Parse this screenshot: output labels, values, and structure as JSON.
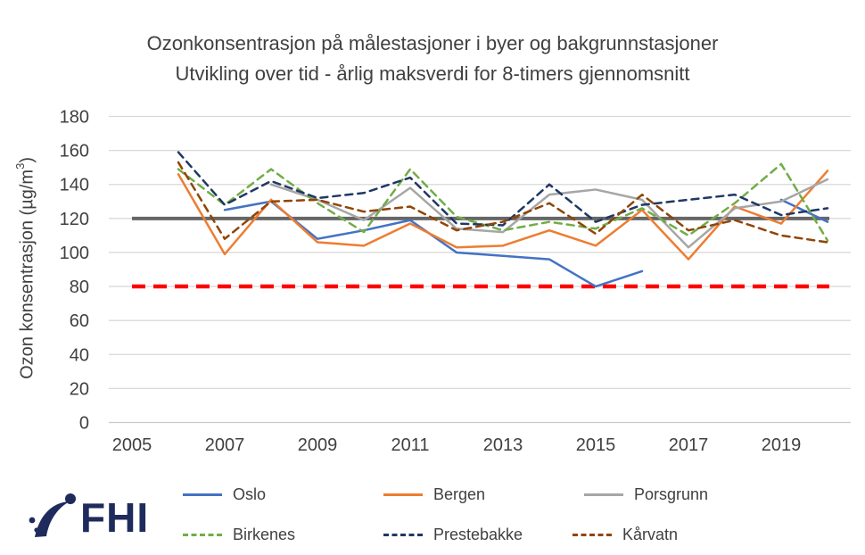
{
  "header": {
    "title_line1": "Ozonkonsentrasjon på målestasjoner i byer og bakgrunnstasjoner",
    "title_line2": "Utvikling over tid - årlig maksverdi for 8-timers gjennomsnitt"
  },
  "y_axis": {
    "label_prefix": "Ozon konsentrasjon (µg/m",
    "label_sup": "3",
    "label_suffix": ")"
  },
  "logo": {
    "text": "FHI"
  },
  "chart_data": {
    "type": "line",
    "title": "Ozonkonsentrasjon på målestasjoner i byer og bakgrunnstasjoner — Utvikling over tid - årlig maksverdi for 8-timers gjennomsnitt",
    "xlabel": "",
    "ylabel": "Ozon konsentrasjon (µg/m³)",
    "x": [
      2006,
      2007,
      2008,
      2009,
      2010,
      2011,
      2012,
      2013,
      2014,
      2015,
      2016,
      2017,
      2018,
      2019,
      2020
    ],
    "x_ticks": [
      2005,
      2007,
      2009,
      2011,
      2013,
      2015,
      2017,
      2019
    ],
    "y_ticks": [
      0,
      20,
      40,
      60,
      80,
      100,
      120,
      140,
      160,
      180
    ],
    "ylim": [
      0,
      180
    ],
    "xlim": [
      2005,
      2020.5
    ],
    "grid": "horizontal",
    "legend_position": "bottom",
    "reference_lines": [
      {
        "value": 120,
        "color": "#666666",
        "style": "solid"
      },
      {
        "value": 80,
        "color": "#FF0000",
        "style": "dashed"
      }
    ],
    "series": [
      {
        "name": "Oslo",
        "color": "#4472C4",
        "style": "solid",
        "values": [
          null,
          125,
          130,
          108,
          113,
          119,
          100,
          98,
          96,
          80,
          89,
          null,
          null,
          131,
          118
        ]
      },
      {
        "name": "Bergen",
        "color": "#ED7D31",
        "style": "solid",
        "values": [
          146,
          99,
          131,
          106,
          104,
          117,
          103,
          104,
          113,
          104,
          125,
          96,
          127,
          117,
          148
        ]
      },
      {
        "name": "Porsgrunn",
        "color": "#A6A6A6",
        "style": "solid",
        "values": [
          null,
          null,
          140,
          131,
          119,
          138,
          114,
          112,
          134,
          137,
          131,
          103,
          126,
          130,
          143
        ]
      },
      {
        "name": "Birkenes",
        "color": "#70AD47",
        "style": "dashed",
        "values": [
          149,
          128,
          149,
          129,
          112,
          149,
          121,
          113,
          118,
          114,
          126,
          110,
          129,
          152,
          107
        ]
      },
      {
        "name": "Prestebakke",
        "color": "#1F3864",
        "style": "dashed",
        "values": [
          159,
          128,
          142,
          132,
          135,
          144,
          117,
          116,
          140,
          118,
          128,
          131,
          134,
          122,
          126
        ]
      },
      {
        "name": "Kårvatn",
        "color": "#8F4508",
        "style": "dashed",
        "values": [
          153,
          108,
          130,
          131,
          124,
          127,
          113,
          118,
          129,
          111,
          134,
          113,
          119,
          110,
          106
        ]
      }
    ]
  }
}
